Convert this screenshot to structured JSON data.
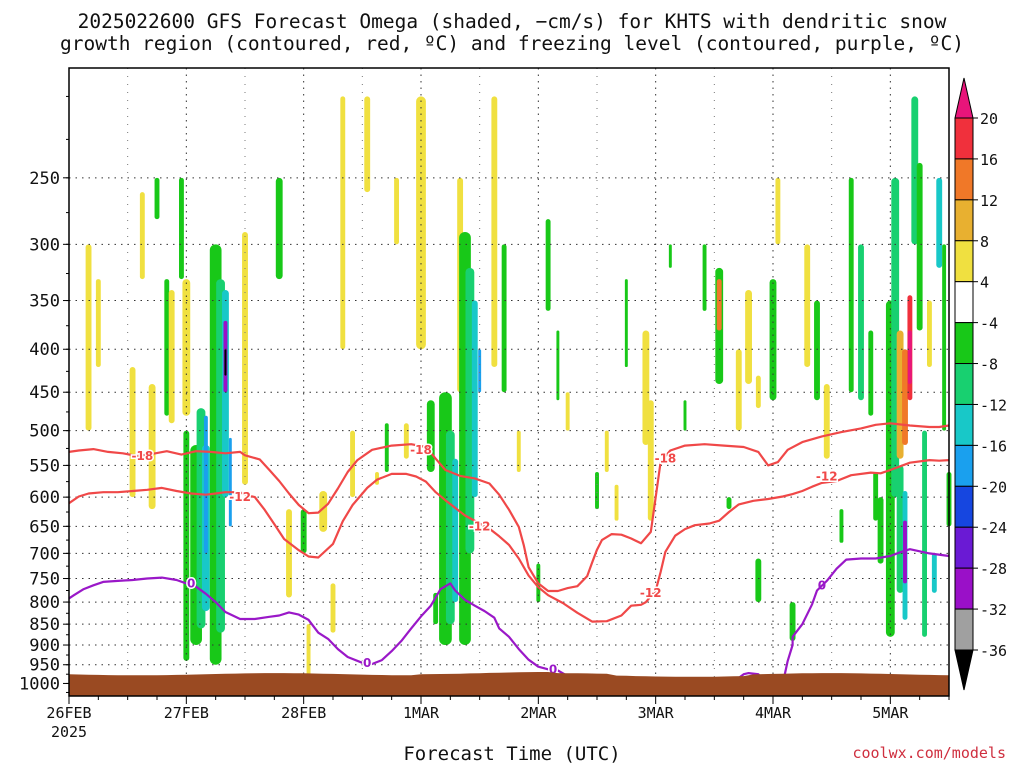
{
  "title": {
    "line1": "2025022600 GFS Forecast Omega (shaded, −cm/s) for KHTS with dendritic snow",
    "line2": "growth region (contoured, red, ºC) and freezing level (contoured, purple, ºC)"
  },
  "credit": "coolwx.com/models",
  "chart_data": {
    "type": "heatmap",
    "xlabel": "Forecast Time (UTC)",
    "ylabel": "",
    "x_ticks": [
      {
        "label": "26FEB",
        "sub": "2025",
        "hour": 0
      },
      {
        "label": "27FEB",
        "sub": "",
        "hour": 24
      },
      {
        "label": "28FEB",
        "sub": "",
        "hour": 48
      },
      {
        "label": "1MAR",
        "sub": "",
        "hour": 72
      },
      {
        "label": "2MAR",
        "sub": "",
        "hour": 96
      },
      {
        "label": "3MAR",
        "sub": "",
        "hour": 120
      },
      {
        "label": "4MAR",
        "sub": "",
        "hour": 144
      },
      {
        "label": "5MAR",
        "sub": "",
        "hour": 168
      }
    ],
    "xlim_hours": [
      0,
      180
    ],
    "y_scale": "log-pressure",
    "ylim_hPa": [
      1035,
      185
    ],
    "y_ticks": [
      250,
      300,
      350,
      400,
      450,
      500,
      550,
      600,
      650,
      700,
      750,
      800,
      850,
      900,
      950,
      1000
    ],
    "grid": true,
    "surface_pressure_hPa": 975,
    "surface_color": "#9a4a22",
    "colorbar": {
      "labels": [
        "20",
        "16",
        "12",
        "8",
        "4",
        "-4",
        "-8",
        "-12",
        "-16",
        "-20",
        "-24",
        "-28",
        "-32",
        "-36"
      ],
      "colors": [
        "#e8157a",
        "#f0303c",
        "#f07828",
        "#e8b030",
        "#f0e040",
        "#ffffff",
        "#18c818",
        "#18d070",
        "#18c8c8",
        "#1aa0ee",
        "#1646e0",
        "#6a1ad4",
        "#9a10c8",
        "#a0a0a0",
        "#000000"
      ]
    },
    "contours": [
      {
        "name": "-18",
        "color": "#f04848",
        "points": [
          [
            0,
            530
          ],
          [
            2,
            528
          ],
          [
            5,
            526
          ],
          [
            8,
            530
          ],
          [
            11,
            532
          ],
          [
            14,
            536
          ],
          [
            17,
            533
          ],
          [
            20,
            529
          ],
          [
            23,
            534
          ],
          [
            26,
            529
          ],
          [
            29,
            530
          ],
          [
            32,
            532
          ],
          [
            35,
            530
          ],
          [
            36,
            535
          ],
          [
            39,
            541
          ],
          [
            41,
            557
          ],
          [
            43,
            574
          ],
          [
            45,
            594
          ],
          [
            47,
            613
          ],
          [
            49,
            627
          ],
          [
            51,
            626
          ],
          [
            53,
            611
          ],
          [
            55,
            586
          ],
          [
            57,
            560
          ],
          [
            59,
            542
          ],
          [
            62,
            527
          ],
          [
            66,
            521
          ],
          [
            70,
            519
          ],
          [
            73,
            523
          ],
          [
            75,
            540
          ],
          [
            77,
            557
          ],
          [
            80,
            566
          ],
          [
            83,
            570
          ],
          [
            86,
            578
          ],
          [
            88,
            596
          ],
          [
            90,
            621
          ],
          [
            92,
            651
          ],
          [
            93,
            684
          ],
          [
            94,
            727
          ],
          [
            96,
            760
          ],
          [
            98,
            776
          ],
          [
            100,
            776
          ],
          [
            102,
            770
          ],
          [
            104,
            766
          ],
          [
            106,
            745
          ],
          [
            107,
            718
          ],
          [
            108,
            693
          ],
          [
            109,
            675
          ],
          [
            111,
            664
          ],
          [
            113,
            665
          ],
          [
            115,
            672
          ],
          [
            117,
            681
          ],
          [
            119,
            660
          ],
          [
            120,
            600
          ],
          [
            121,
            545
          ],
          [
            123,
            528
          ],
          [
            126,
            521
          ],
          [
            130,
            519
          ],
          [
            134,
            521
          ],
          [
            138,
            523
          ],
          [
            141,
            530
          ],
          [
            143,
            550
          ],
          [
            145,
            545
          ],
          [
            147,
            527
          ],
          [
            150,
            516
          ],
          [
            154,
            508
          ],
          [
            158,
            502
          ],
          [
            162,
            497
          ],
          [
            165,
            492
          ],
          [
            168,
            490
          ],
          [
            172,
            493
          ],
          [
            176,
            495
          ],
          [
            178,
            495
          ],
          [
            180,
            493
          ]
        ],
        "labels": [
          [
            15,
            536
          ],
          [
            122,
            540
          ],
          [
            72,
            527
          ]
        ]
      },
      {
        "name": "-12",
        "color": "#f04848",
        "points": [
          [
            0,
            610
          ],
          [
            2,
            599
          ],
          [
            4,
            594
          ],
          [
            7,
            592
          ],
          [
            10,
            592
          ],
          [
            13,
            590
          ],
          [
            16,
            588
          ],
          [
            19,
            585
          ],
          [
            22,
            590
          ],
          [
            25,
            594
          ],
          [
            28,
            596
          ],
          [
            30,
            594
          ],
          [
            32,
            592
          ],
          [
            35,
            592
          ],
          [
            36,
            596
          ],
          [
            38,
            600
          ],
          [
            40,
            621
          ],
          [
            42,
            646
          ],
          [
            44,
            673
          ],
          [
            47,
            694
          ],
          [
            49,
            706
          ],
          [
            51,
            708
          ],
          [
            54,
            682
          ],
          [
            56,
            641
          ],
          [
            58,
            613
          ],
          [
            61,
            585
          ],
          [
            63,
            572
          ],
          [
            66,
            563
          ],
          [
            69,
            563
          ],
          [
            71,
            567
          ],
          [
            73,
            575
          ],
          [
            75,
            592
          ],
          [
            77,
            605
          ],
          [
            79,
            618
          ],
          [
            81,
            631
          ],
          [
            84,
            645
          ],
          [
            86,
            654
          ],
          [
            88,
            668
          ],
          [
            90,
            684
          ],
          [
            92,
            710
          ],
          [
            94,
            744
          ],
          [
            96,
            768
          ],
          [
            98,
            785
          ],
          [
            101,
            802
          ],
          [
            104,
            824
          ],
          [
            107,
            844
          ],
          [
            110,
            843
          ],
          [
            113,
            830
          ],
          [
            115,
            808
          ],
          [
            117,
            806
          ],
          [
            118,
            800
          ],
          [
            120,
            775
          ],
          [
            121,
            737
          ],
          [
            122,
            697
          ],
          [
            124,
            667
          ],
          [
            126,
            655
          ],
          [
            128,
            648
          ],
          [
            131,
            645
          ],
          [
            133,
            640
          ],
          [
            135,
            625
          ],
          [
            137,
            612
          ],
          [
            140,
            606
          ],
          [
            143,
            603
          ],
          [
            146,
            599
          ],
          [
            148,
            595
          ],
          [
            150,
            590
          ],
          [
            152,
            583
          ],
          [
            154,
            577
          ],
          [
            157,
            574
          ],
          [
            160,
            565
          ],
          [
            164,
            561
          ],
          [
            166,
            562
          ],
          [
            168,
            557
          ],
          [
            172,
            546
          ],
          [
            176,
            542
          ],
          [
            178,
            543
          ],
          [
            180,
            542
          ]
        ],
        "labels": [
          [
            35,
            600
          ],
          [
            84,
            650
          ],
          [
            119,
            780
          ],
          [
            155,
            567
          ]
        ]
      },
      {
        "name": "0",
        "color": "#9a18c8",
        "points": [
          [
            0,
            792
          ],
          [
            1,
            785
          ],
          [
            3,
            772
          ],
          [
            5,
            764
          ],
          [
            7,
            757
          ],
          [
            10,
            755
          ],
          [
            13,
            753
          ],
          [
            16,
            750
          ],
          [
            19,
            748
          ],
          [
            22,
            753
          ],
          [
            24,
            760
          ],
          [
            26,
            767
          ],
          [
            28,
            782
          ],
          [
            30,
            800
          ],
          [
            32,
            822
          ],
          [
            35,
            838
          ],
          [
            38,
            838
          ],
          [
            41,
            833
          ],
          [
            43,
            830
          ],
          [
            45,
            823
          ],
          [
            47,
            828
          ],
          [
            49,
            840
          ],
          [
            51,
            870
          ],
          [
            53,
            885
          ],
          [
            55,
            910
          ],
          [
            57,
            930
          ],
          [
            60,
            945
          ],
          [
            62,
            948
          ],
          [
            64,
            938
          ],
          [
            66,
            915
          ],
          [
            68,
            890
          ],
          [
            70,
            860
          ],
          [
            72,
            832
          ],
          [
            74,
            808
          ],
          [
            76,
            772
          ],
          [
            78,
            760
          ],
          [
            79,
            775
          ],
          [
            81,
            795
          ],
          [
            83,
            808
          ],
          [
            85,
            820
          ],
          [
            87,
            835
          ],
          [
            88,
            860
          ],
          [
            90,
            880
          ],
          [
            92,
            910
          ],
          [
            94,
            937
          ],
          [
            96,
            955
          ],
          [
            98,
            962
          ],
          [
            100,
            965
          ],
          [
            102,
            980
          ],
          [
            104,
            1000
          ],
          [
            106,
            1030
          ]
        ],
        "labels": [
          [
            25,
            760
          ],
          [
            61,
            945
          ],
          [
            99,
            962
          ],
          [
            154,
            765
          ]
        ]
      },
      {
        "name": "0-b",
        "color": "#9a18c8",
        "points": [
          [
            116,
            1000
          ],
          [
            117,
            990
          ],
          [
            119,
            985
          ],
          [
            121,
            990
          ],
          [
            122,
            1000
          ],
          [
            123,
            1030
          ]
        ]
      },
      {
        "name": "0-c",
        "color": "#9a18c8",
        "points": [
          [
            136,
            1000
          ],
          [
            137,
            985
          ],
          [
            138,
            975
          ],
          [
            139,
            972
          ],
          [
            141,
            975
          ],
          [
            142,
            990
          ],
          [
            143,
            985
          ],
          [
            144,
            995
          ],
          [
            145,
            1030
          ]
        ]
      },
      {
        "name": "0-d",
        "color": "#9a18c8",
        "points": [
          [
            145,
            1030
          ],
          [
            146,
            1000
          ],
          [
            147,
            940
          ],
          [
            148,
            900
          ],
          [
            148,
            880
          ],
          [
            150,
            850
          ],
          [
            152,
            805
          ],
          [
            153,
            775
          ],
          [
            155,
            755
          ],
          [
            157,
            730
          ],
          [
            159,
            712
          ],
          [
            162,
            710
          ],
          [
            165,
            710
          ],
          [
            168,
            705
          ],
          [
            170,
            698
          ],
          [
            172,
            692
          ],
          [
            176,
            700
          ],
          [
            180,
            705
          ]
        ]
      }
    ]
  }
}
